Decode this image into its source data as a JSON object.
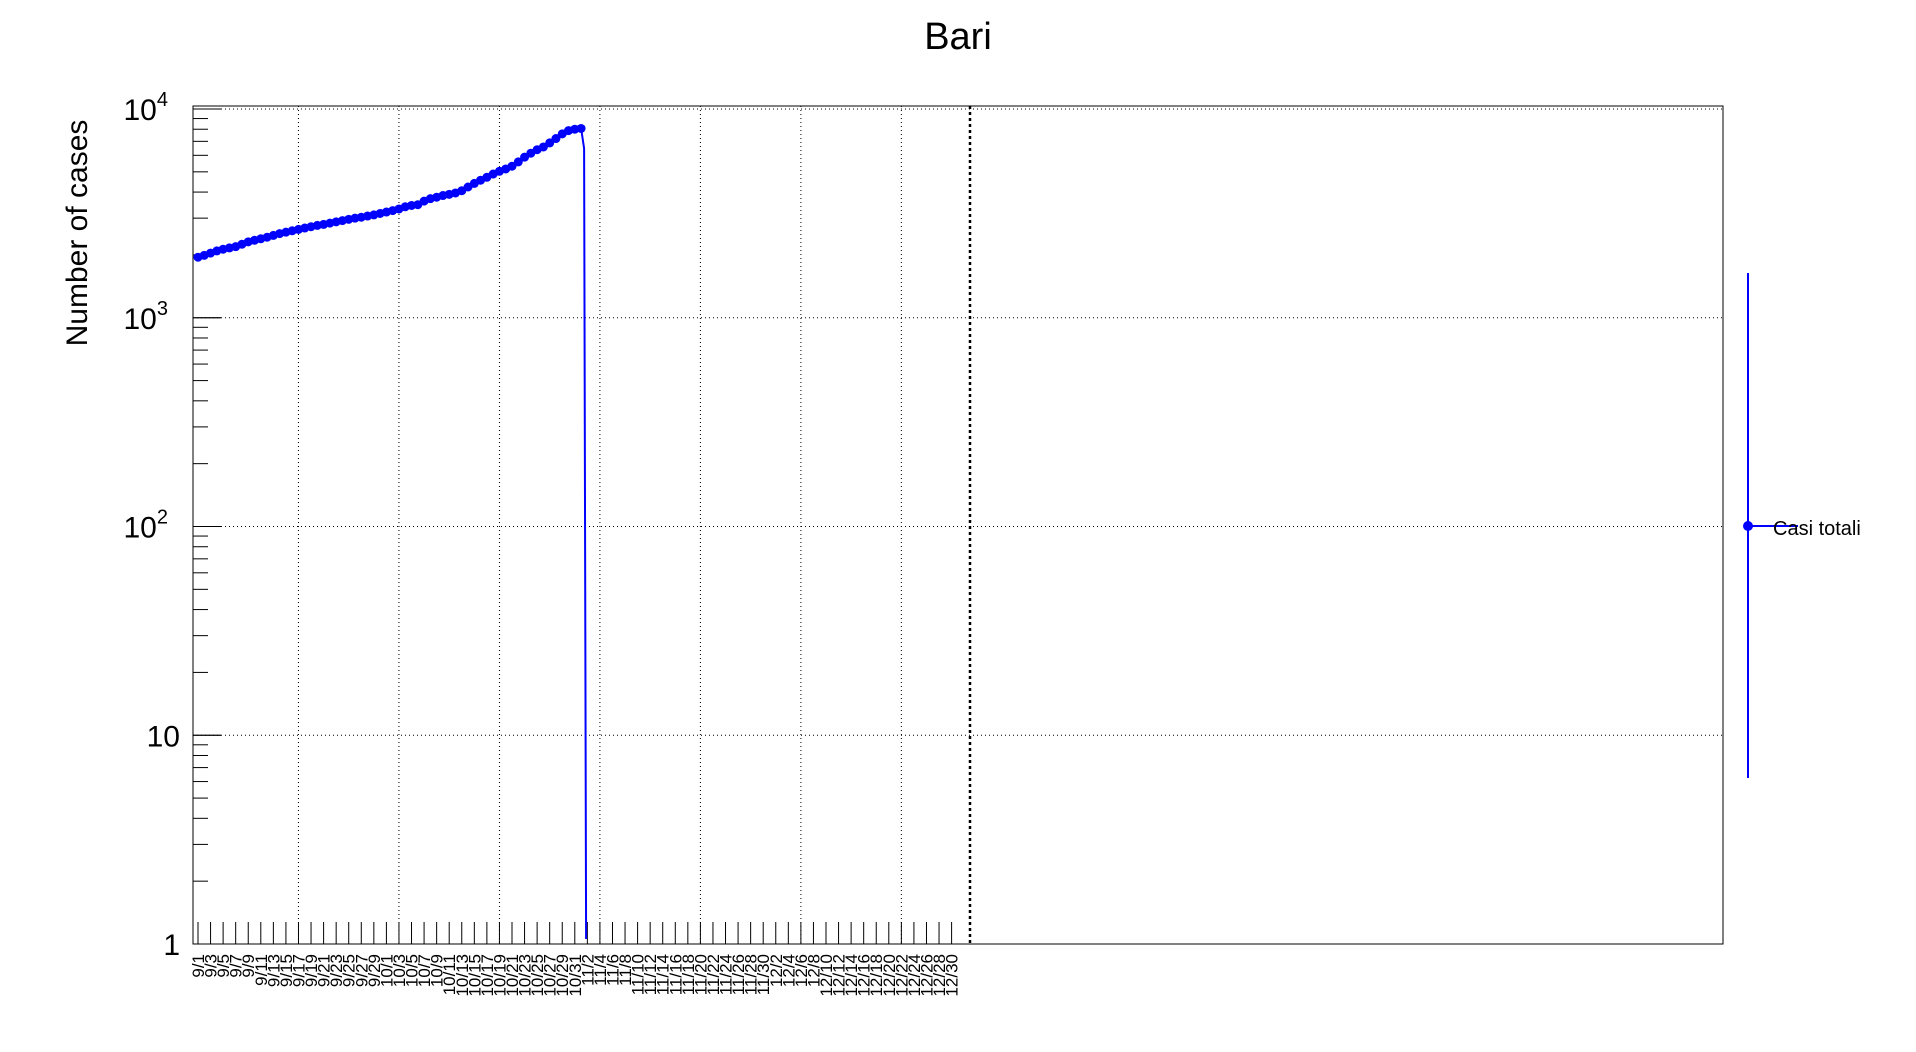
{
  "chart_data": {
    "type": "line",
    "title": "Bari",
    "xlabel": "",
    "ylabel": "Number of cases",
    "yscale": "log",
    "ylim": [
      1,
      10000
    ],
    "grid": true,
    "legend_placement": "right",
    "x_ticks": [
      "9/1",
      "9/3",
      "9/5",
      "9/7",
      "9/9",
      "9/11",
      "9/13",
      "9/15",
      "9/17",
      "9/19",
      "9/21",
      "9/23",
      "9/25",
      "9/27",
      "9/29",
      "10/1",
      "10/3",
      "10/5",
      "10/7",
      "10/9",
      "10/11",
      "10/13",
      "10/15",
      "10/17",
      "10/19",
      "10/21",
      "10/23",
      "10/25",
      "10/27",
      "10/29",
      "10/31",
      "11/2",
      "11/4",
      "11/6",
      "11/8",
      "11/10",
      "11/12",
      "11/14",
      "11/16",
      "11/18",
      "11/20",
      "11/22",
      "11/24",
      "11/26",
      "11/28",
      "11/30",
      "12/2",
      "12/4",
      "12/6",
      "12/8",
      "12/10",
      "12/12",
      "12/14",
      "12/16",
      "12/18",
      "12/20",
      "12/22",
      "12/24",
      "12/26",
      "12/28",
      "12/30"
    ],
    "y_ticks": [
      {
        "base": "1",
        "exp": ""
      },
      {
        "base": "10",
        "exp": ""
      },
      {
        "base": "10",
        "exp": "2"
      },
      {
        "base": "10",
        "exp": "3"
      },
      {
        "base": "10",
        "exp": "4"
      }
    ],
    "y_tick_values": [
      1,
      10,
      100,
      1000,
      10000
    ],
    "series": [
      {
        "name": "Casi totali",
        "color": "#0000ff",
        "start_date": "9/1",
        "x": [
          "9/1",
          "9/2",
          "9/3",
          "9/4",
          "9/5",
          "9/6",
          "9/7",
          "9/8",
          "9/9",
          "9/10",
          "9/11",
          "9/12",
          "9/13",
          "9/14",
          "9/15",
          "9/16",
          "9/17",
          "9/18",
          "9/19",
          "9/20",
          "9/21",
          "9/22",
          "9/23",
          "9/24",
          "9/25",
          "9/26",
          "9/27",
          "9/28",
          "9/29",
          "9/30",
          "10/1",
          "10/2",
          "10/3",
          "10/4",
          "10/5",
          "10/6",
          "10/7",
          "10/8",
          "10/9",
          "10/10",
          "10/11",
          "10/12",
          "10/13",
          "10/14",
          "10/15",
          "10/16",
          "10/17",
          "10/18",
          "10/19",
          "10/20",
          "10/21",
          "10/22",
          "10/23",
          "10/24",
          "10/25",
          "10/26",
          "10/27",
          "10/28",
          "10/29",
          "10/30",
          "10/31",
          "11/1"
        ],
        "values": [
          1950,
          1990,
          2040,
          2090,
          2130,
          2160,
          2190,
          2250,
          2310,
          2350,
          2390,
          2430,
          2480,
          2530,
          2570,
          2610,
          2650,
          2690,
          2730,
          2770,
          2800,
          2840,
          2880,
          2920,
          2960,
          3000,
          3030,
          3070,
          3110,
          3160,
          3210,
          3260,
          3320,
          3400,
          3450,
          3480,
          3620,
          3720,
          3780,
          3850,
          3900,
          3960,
          4060,
          4230,
          4400,
          4560,
          4710,
          4880,
          5030,
          5160,
          5320,
          5580,
          5880,
          6140,
          6380,
          6580,
          6880,
          7220,
          7600,
          7880,
          8000,
          8070
        ]
      }
    ],
    "vline_x": "11/1"
  }
}
